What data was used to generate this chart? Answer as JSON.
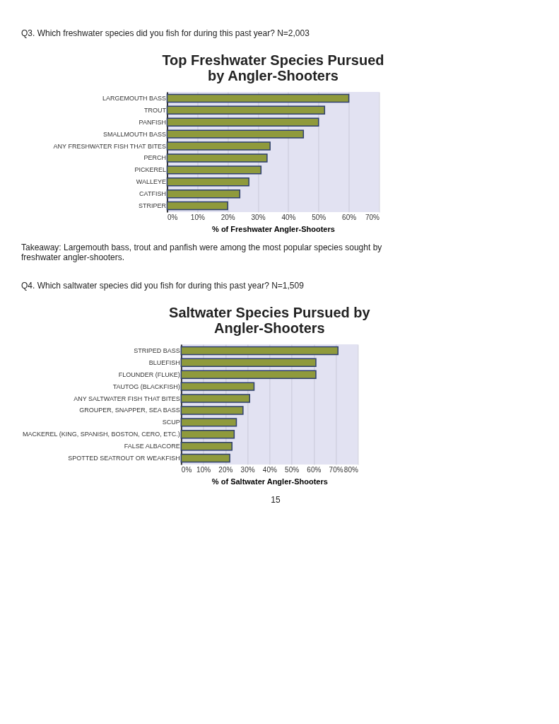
{
  "chart_data": [
    {
      "type": "bar",
      "orientation": "horizontal",
      "title": "Top Freshwater Species Pursued by Angler-Shooters",
      "xlabel": "% of Freshwater Angler-Shooters",
      "categories": [
        "LARGEMOUTH BASS",
        "TROUT",
        "PANFISH",
        "SMALLMOUTH BASS",
        "ANY FRESHWATER FISH THAT BITES",
        "PERCH",
        "PICKEREL",
        "WALLEYE",
        "CATFISH",
        "STRIPER"
      ],
      "values": [
        60,
        52,
        50,
        45,
        34,
        33,
        31,
        27,
        24,
        20
      ],
      "color": "#8f9a3c",
      "xlim": [
        0,
        70
      ],
      "xticks": [
        {
          "value": 0,
          "label": "0%"
        },
        {
          "value": 10,
          "label": "10%"
        },
        {
          "value": 20,
          "label": "20%"
        },
        {
          "value": 30,
          "label": "30%"
        },
        {
          "value": 40,
          "label": "40%"
        },
        {
          "value": 50,
          "label": "50%"
        },
        {
          "value": 60,
          "label": "60%"
        },
        {
          "value": 70,
          "label": "70%"
        }
      ],
      "grid": "x",
      "annotations": [
        "Q3. Which freshwater species did you fish for during this past year? N=2,003",
        "Takeaway: Largemouth bass, trout and panfish were among the most popular species sought by freshwater angler-shooters."
      ]
    },
    {
      "type": "bar",
      "orientation": "horizontal",
      "title": "Saltwater Species Pursued by Angler-Shooters",
      "xlabel": "% of Saltwater Angler-Shooters",
      "categories": [
        "STRIPED BASS",
        "BLUEFISH",
        "FLOUNDER (FLUKE)",
        "TAUTOG (BLACKFISH)",
        "ANY SALTWATER FISH THAT BITES",
        "GROUPER, SNAPPER, SEA BASS",
        "SCUP",
        "MACKEREL (KING, SPANISH, BOSTON, CERO, ETC.)",
        "FALSE ALBACORE",
        "SPOTTED SEATROUT OR WEAKFISH"
      ],
      "values": [
        71,
        61,
        61,
        33,
        31,
        28,
        25,
        24,
        23,
        22
      ],
      "color": "#8f9a3c",
      "xlim": [
        0,
        80
      ],
      "xticks": [
        {
          "value": 0,
          "label": "0%"
        },
        {
          "value": 10,
          "label": "10%"
        },
        {
          "value": 20,
          "label": "20%"
        },
        {
          "value": 30,
          "label": "30%"
        },
        {
          "value": 40,
          "label": "40%"
        },
        {
          "value": 50,
          "label": "50%"
        },
        {
          "value": 60,
          "label": "60%"
        },
        {
          "value": 70,
          "label": "70%"
        },
        {
          "value": 80,
          "label": "80%"
        }
      ],
      "grid": "x",
      "annotations": [
        "Q4. Which saltwater species did you fish for during this past year? N=1,509",
        "15"
      ]
    }
  ]
}
